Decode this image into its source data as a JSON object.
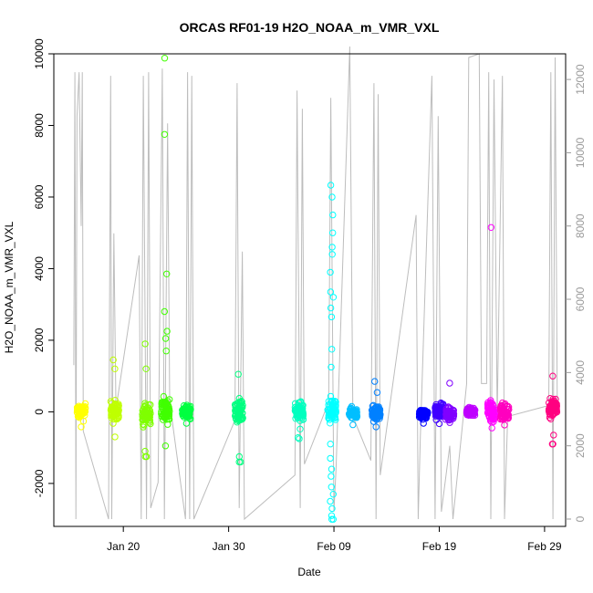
{
  "chart_data": {
    "type": "scatter",
    "title": "ORCAS RF01-19 H2O_NOAA_m_VMR_VXL",
    "xlabel": "Date",
    "ylabel": "H2O_NOAA_m_VMR_VXL",
    "x_ticks": [
      {
        "label": "Jan 20",
        "day": 20
      },
      {
        "label": "Jan 30",
        "day": 30
      },
      {
        "label": "Feb 09",
        "day": 40
      },
      {
        "label": "Feb 19",
        "day": 50
      },
      {
        "label": "Feb 29",
        "day": 60
      }
    ],
    "xlim_days": [
      13.4,
      62.0
    ],
    "ylim": [
      -3200,
      10000
    ],
    "y_ticks": [
      -2000,
      0,
      2000,
      4000,
      6000,
      8000,
      10000
    ],
    "y2_ticks": [
      0,
      2000,
      4000,
      6000,
      8000,
      10000,
      12000
    ],
    "y2lim": [
      -200,
      12700
    ],
    "flights": [
      {
        "day": 16.0,
        "color": "#ffff00",
        "median": 0,
        "spread": 180,
        "min": -420,
        "max": 800,
        "extra": []
      },
      {
        "day": 19.2,
        "color": "#bfff00",
        "median": 0,
        "spread": 250,
        "min": -700,
        "max": 1600,
        "extra": [
          1450,
          1200
        ]
      },
      {
        "day": 22.2,
        "color": "#7fff00",
        "median": -50,
        "spread": 260,
        "min": -1250,
        "max": 2100,
        "extra": [
          1900,
          1200,
          -1100,
          -1250
        ]
      },
      {
        "day": 24.0,
        "color": "#40ff00",
        "median": 50,
        "spread": 320,
        "min": -950,
        "max": 9880,
        "extra": [
          9880,
          7750,
          3850,
          2800,
          2250,
          2050,
          1700
        ]
      },
      {
        "day": 26.0,
        "color": "#00ff40",
        "median": 0,
        "spread": 160,
        "min": -320,
        "max": 420,
        "extra": []
      },
      {
        "day": 31.0,
        "color": "#00ff80",
        "median": 0,
        "spread": 300,
        "min": -1400,
        "max": 1100,
        "extra": [
          -1250,
          -1400,
          1050
        ]
      },
      {
        "day": 36.7,
        "color": "#00ffbf",
        "median": 0,
        "spread": 220,
        "min": -750,
        "max": 420,
        "extra": [
          -480,
          -720
        ]
      },
      {
        "day": 39.8,
        "color": "#00ffff",
        "median": 0,
        "spread": 350,
        "min": -3000,
        "max": 6350,
        "extra": [
          6330,
          6000,
          5500,
          5000,
          4600,
          4400,
          3900,
          3350,
          3200,
          2900,
          2650,
          1750,
          1250,
          -900,
          -1300,
          -1600,
          -1800,
          -2100,
          -2300,
          -2500,
          -2700,
          -2900,
          -3000
        ]
      },
      {
        "day": 41.8,
        "color": "#00bfff",
        "median": -30,
        "spread": 130,
        "min": -360,
        "max": 260,
        "extra": []
      },
      {
        "day": 44.0,
        "color": "#0080ff",
        "median": -50,
        "spread": 170,
        "min": -420,
        "max": 850,
        "extra": [
          850,
          540
        ]
      },
      {
        "day": 48.5,
        "color": "#0000ff",
        "median": -50,
        "spread": 130,
        "min": -320,
        "max": 300,
        "extra": []
      },
      {
        "day": 50.0,
        "color": "#4000ff",
        "median": 0,
        "spread": 180,
        "min": -330,
        "max": 540,
        "extra": []
      },
      {
        "day": 51.0,
        "color": "#8000ff",
        "median": -50,
        "spread": 150,
        "min": -300,
        "max": 800,
        "extra": [
          800
        ]
      },
      {
        "day": 53.0,
        "color": "#bf00ff",
        "median": 0,
        "spread": 110,
        "min": -100,
        "max": 200,
        "extra": []
      },
      {
        "day": 55.0,
        "color": "#ff00ff",
        "median": 0,
        "spread": 250,
        "min": -450,
        "max": 5150,
        "extra": [
          5150
        ]
      },
      {
        "day": 56.2,
        "color": "#ff00bf",
        "median": 0,
        "spread": 210,
        "min": -370,
        "max": 520,
        "extra": []
      },
      {
        "day": 60.8,
        "color": "#ff0080",
        "median": 120,
        "spread": 210,
        "min": -900,
        "max": 1000,
        "extra": [
          1000,
          -650,
          -900
        ]
      }
    ],
    "secondary_trace_y2": [
      {
        "day": 15.3,
        "y2": 4200
      },
      {
        "day": 15.4,
        "y2": 12200
      },
      {
        "day": 15.5,
        "y2": 0
      },
      {
        "day": 15.6,
        "y2": 11000
      },
      {
        "day": 15.8,
        "y2": 12200
      },
      {
        "day": 16.0,
        "y2": 8000
      },
      {
        "day": 16.1,
        "y2": 12200
      },
      {
        "day": 16.2,
        "y2": 2400
      },
      {
        "day": 18.6,
        "y2": 0
      },
      {
        "day": 18.8,
        "y2": 12100
      },
      {
        "day": 18.9,
        "y2": 0
      },
      {
        "day": 19.1,
        "y2": 7800
      },
      {
        "day": 19.3,
        "y2": 3000
      },
      {
        "day": 21.5,
        "y2": 7200
      },
      {
        "day": 21.7,
        "y2": 0
      },
      {
        "day": 21.9,
        "y2": 12100
      },
      {
        "day": 22.2,
        "y2": 0
      },
      {
        "day": 22.4,
        "y2": 12200
      },
      {
        "day": 22.6,
        "y2": 300
      },
      {
        "day": 23.3,
        "y2": 1000
      },
      {
        "day": 23.7,
        "y2": 12300
      },
      {
        "day": 23.9,
        "y2": 0
      },
      {
        "day": 24.2,
        "y2": 10800
      },
      {
        "day": 24.4,
        "y2": 3200
      },
      {
        "day": 25.9,
        "y2": 0
      },
      {
        "day": 26.1,
        "y2": 12200
      },
      {
        "day": 26.3,
        "y2": 0
      },
      {
        "day": 26.5,
        "y2": 12100
      },
      {
        "day": 26.7,
        "y2": 0
      },
      {
        "day": 30.6,
        "y2": 2700
      },
      {
        "day": 30.8,
        "y2": 11900
      },
      {
        "day": 31.0,
        "y2": 300
      },
      {
        "day": 31.3,
        "y2": 7300
      },
      {
        "day": 31.5,
        "y2": 0
      },
      {
        "day": 36.3,
        "y2": 1200
      },
      {
        "day": 36.5,
        "y2": 11700
      },
      {
        "day": 36.8,
        "y2": 300
      },
      {
        "day": 37.0,
        "y2": 11200
      },
      {
        "day": 37.2,
        "y2": 1500
      },
      {
        "day": 39.5,
        "y2": 3200
      },
      {
        "day": 39.7,
        "y2": 11500
      },
      {
        "day": 40.0,
        "y2": 200
      },
      {
        "day": 40.2,
        "y2": 1400
      },
      {
        "day": 41.5,
        "y2": 12900
      },
      {
        "day": 41.8,
        "y2": 2800
      },
      {
        "day": 43.5,
        "y2": 1600
      },
      {
        "day": 43.8,
        "y2": 11900
      },
      {
        "day": 44.0,
        "y2": 0
      },
      {
        "day": 44.2,
        "y2": 11600
      },
      {
        "day": 44.4,
        "y2": 1200
      },
      {
        "day": 47.8,
        "y2": 8300
      },
      {
        "day": 48.0,
        "y2": 0
      },
      {
        "day": 48.2,
        "y2": 2200
      },
      {
        "day": 49.3,
        "y2": 12100
      },
      {
        "day": 49.6,
        "y2": 0
      },
      {
        "day": 49.9,
        "y2": 11000
      },
      {
        "day": 50.2,
        "y2": 200
      },
      {
        "day": 51.0,
        "y2": 2000
      },
      {
        "day": 51.3,
        "y2": 0
      },
      {
        "day": 52.6,
        "y2": 3700
      },
      {
        "day": 52.8,
        "y2": 12600
      },
      {
        "day": 53.8,
        "y2": 12700
      },
      {
        "day": 54.0,
        "y2": 3700
      },
      {
        "day": 54.5,
        "y2": 3700
      },
      {
        "day": 54.7,
        "y2": 12200
      },
      {
        "day": 54.9,
        "y2": 0
      },
      {
        "day": 55.2,
        "y2": 12000
      },
      {
        "day": 55.5,
        "y2": 2800
      },
      {
        "day": 56.0,
        "y2": 12100
      },
      {
        "day": 56.2,
        "y2": 0
      },
      {
        "day": 56.5,
        "y2": 2800
      },
      {
        "day": 60.4,
        "y2": 3100
      },
      {
        "day": 60.6,
        "y2": 12200
      },
      {
        "day": 60.8,
        "y2": 0
      },
      {
        "day": 61.0,
        "y2": 12600
      },
      {
        "day": 61.2,
        "y2": 3200
      }
    ],
    "legend": "none",
    "grid": false
  }
}
